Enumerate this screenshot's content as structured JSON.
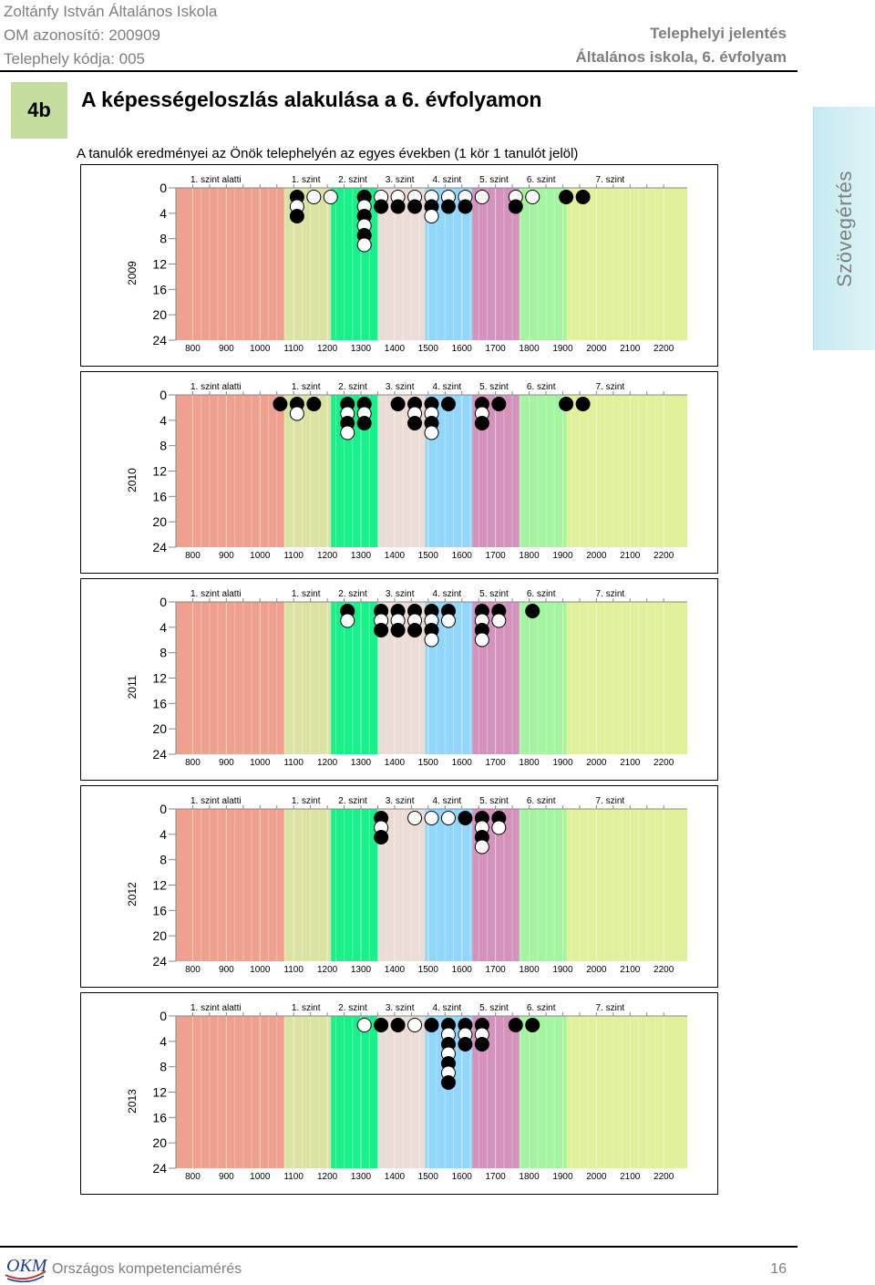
{
  "header": {
    "school": "Zoltánfy István Általános Iskola",
    "om_id": "OM azonosító: 200909",
    "site_code": "Telephely kódja: 005",
    "report_type": "Telephelyi jelentés",
    "school_type": "Általános iskola, 6. évfolyam"
  },
  "section": {
    "badge": "4b",
    "title": "A képességeloszlás alakulása a 6. évfolyamon",
    "subtitle": "A tanulók eredményei az Önök telephelyén az egyes években (1 kör 1 tanulót jelöl)"
  },
  "side_tab": {
    "label": "Szövegértés"
  },
  "footer": {
    "org": "Országos kompetenciamérés",
    "page": "16"
  },
  "colors": {
    "header_gray": "#7f7f7f",
    "badge_green": "#c5dea0",
    "side_tab": "#c5eaf0"
  },
  "chart_data": {
    "type": "scatter",
    "x_axis": {
      "range": [
        750,
        2270
      ],
      "ticks": [
        "800",
        "900",
        "1000",
        "1100",
        "1200",
        "1300",
        "1400",
        "1500",
        "1600",
        "1700",
        "1800",
        "1900",
        "2000",
        "2100",
        "2200"
      ]
    },
    "y_axis": {
      "range": [
        0,
        24
      ],
      "ticks": [
        "0",
        "4",
        "8",
        "12",
        "16",
        "20",
        "24"
      ]
    },
    "bands": [
      {
        "label": "1. szint alatti",
        "from": 750,
        "to": 1072,
        "color": "#f0a08e"
      },
      {
        "label": "1. szint",
        "from": 1072,
        "to": 1211,
        "color": "#dbe3a3"
      },
      {
        "label": "2. szint",
        "from": 1211,
        "to": 1351,
        "color": "#18f08a"
      },
      {
        "label": "3. szint",
        "from": 1351,
        "to": 1491,
        "color": "#ecdcd6"
      },
      {
        "label": "4. szint",
        "from": 1491,
        "to": 1631,
        "color": "#92d7fb"
      },
      {
        "label": "5. szint",
        "from": 1631,
        "to": 1771,
        "color": "#d393bc"
      },
      {
        "label": "6. szint",
        "from": 1771,
        "to": 1911,
        "color": "#a3f59f"
      },
      {
        "label": "7. szint",
        "from": 1911,
        "to": 2270,
        "color": "#e0f09b"
      }
    ],
    "panels": [
      {
        "year": "2009",
        "columns": [
          {
            "x": 1110,
            "dots": [
              "b",
              "w",
              "b"
            ]
          },
          {
            "x": 1160,
            "dots": [
              "w"
            ]
          },
          {
            "x": 1210,
            "dots": [
              "w"
            ]
          },
          {
            "x": 1310,
            "dots": [
              "b",
              "w",
              "b",
              "w",
              "b",
              "w"
            ]
          },
          {
            "x": 1360,
            "dots": [
              "w",
              "b"
            ]
          },
          {
            "x": 1410,
            "dots": [
              "w",
              "b"
            ]
          },
          {
            "x": 1460,
            "dots": [
              "w",
              "b"
            ]
          },
          {
            "x": 1510,
            "dots": [
              "w",
              "b",
              "w"
            ]
          },
          {
            "x": 1560,
            "dots": [
              "w",
              "b"
            ]
          },
          {
            "x": 1610,
            "dots": [
              "w",
              "b"
            ]
          },
          {
            "x": 1660,
            "dots": [
              "w"
            ]
          },
          {
            "x": 1760,
            "dots": [
              "w",
              "b"
            ]
          },
          {
            "x": 1810,
            "dots": [
              "w"
            ]
          },
          {
            "x": 1910,
            "dots": [
              "b"
            ]
          },
          {
            "x": 1960,
            "dots": [
              "b"
            ]
          }
        ]
      },
      {
        "year": "2010",
        "columns": [
          {
            "x": 1060,
            "dots": [
              "b"
            ]
          },
          {
            "x": 1110,
            "dots": [
              "b",
              "w"
            ]
          },
          {
            "x": 1160,
            "dots": [
              "b"
            ]
          },
          {
            "x": 1260,
            "dots": [
              "b",
              "w",
              "b",
              "w"
            ]
          },
          {
            "x": 1310,
            "dots": [
              "b",
              "w",
              "b"
            ]
          },
          {
            "x": 1410,
            "dots": [
              "b"
            ]
          },
          {
            "x": 1460,
            "dots": [
              "b",
              "w",
              "b"
            ]
          },
          {
            "x": 1510,
            "dots": [
              "b",
              "w",
              "b",
              "w"
            ]
          },
          {
            "x": 1560,
            "dots": [
              "b"
            ]
          },
          {
            "x": 1660,
            "dots": [
              "b",
              "w",
              "b"
            ]
          },
          {
            "x": 1710,
            "dots": [
              "b"
            ]
          },
          {
            "x": 1910,
            "dots": [
              "b"
            ]
          },
          {
            "x": 1960,
            "dots": [
              "b"
            ]
          }
        ]
      },
      {
        "year": "2011",
        "columns": [
          {
            "x": 1260,
            "dots": [
              "b",
              "w"
            ]
          },
          {
            "x": 1360,
            "dots": [
              "b",
              "w",
              "b"
            ]
          },
          {
            "x": 1410,
            "dots": [
              "b",
              "w",
              "b"
            ]
          },
          {
            "x": 1460,
            "dots": [
              "b",
              "w",
              "b"
            ]
          },
          {
            "x": 1510,
            "dots": [
              "b",
              "w",
              "b",
              "w"
            ]
          },
          {
            "x": 1560,
            "dots": [
              "b",
              "w"
            ]
          },
          {
            "x": 1660,
            "dots": [
              "b",
              "w",
              "b",
              "w"
            ]
          },
          {
            "x": 1710,
            "dots": [
              "b",
              "w"
            ]
          },
          {
            "x": 1810,
            "dots": [
              "b"
            ]
          }
        ]
      },
      {
        "year": "2012",
        "columns": [
          {
            "x": 1360,
            "dots": [
              "b",
              "w",
              "b"
            ]
          },
          {
            "x": 1460,
            "dots": [
              "w"
            ]
          },
          {
            "x": 1510,
            "dots": [
              "w"
            ]
          },
          {
            "x": 1560,
            "dots": [
              "w"
            ]
          },
          {
            "x": 1610,
            "dots": [
              "b"
            ]
          },
          {
            "x": 1660,
            "dots": [
              "b",
              "w",
              "b",
              "w"
            ]
          },
          {
            "x": 1710,
            "dots": [
              "b",
              "w"
            ]
          }
        ]
      },
      {
        "year": "2013",
        "columns": [
          {
            "x": 1310,
            "dots": [
              "w"
            ]
          },
          {
            "x": 1360,
            "dots": [
              "b"
            ]
          },
          {
            "x": 1410,
            "dots": [
              "b"
            ]
          },
          {
            "x": 1460,
            "dots": [
              "w"
            ]
          },
          {
            "x": 1510,
            "dots": [
              "b"
            ]
          },
          {
            "x": 1560,
            "dots": [
              "b",
              "w",
              "b",
              "w",
              "b",
              "w",
              "b"
            ]
          },
          {
            "x": 1610,
            "dots": [
              "b",
              "w",
              "b"
            ]
          },
          {
            "x": 1660,
            "dots": [
              "b",
              "w",
              "b"
            ]
          },
          {
            "x": 1760,
            "dots": [
              "b"
            ]
          },
          {
            "x": 1810,
            "dots": [
              "b"
            ]
          }
        ]
      }
    ]
  }
}
